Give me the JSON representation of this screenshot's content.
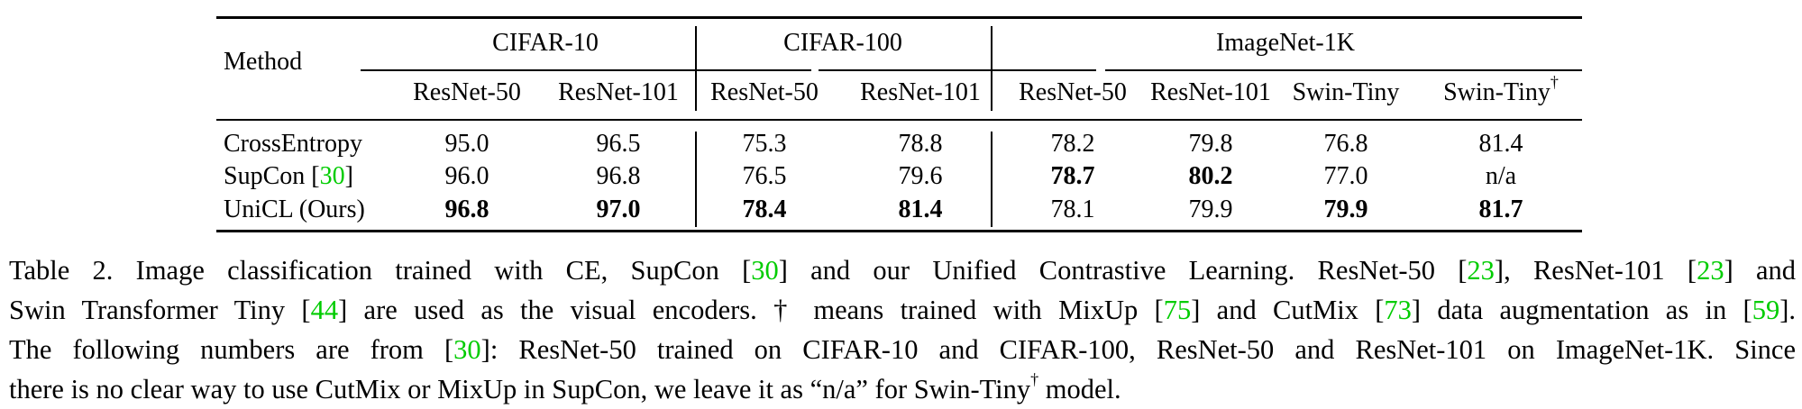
{
  "table": {
    "method_header": "Method",
    "groups": [
      {
        "label": "CIFAR-10"
      },
      {
        "label": "CIFAR-100"
      },
      {
        "label": "ImageNet-1K"
      }
    ],
    "columns": [
      "ResNet-50",
      "ResNet-101",
      "ResNet-50",
      "ResNet-101",
      "ResNet-50",
      "ResNet-101",
      "Swin-Tiny",
      "Swin-Tiny"
    ],
    "dagger": "†",
    "rows": [
      {
        "method": "CrossEntropy",
        "cite": "",
        "values": [
          "95.0",
          "96.5",
          "75.3",
          "78.8",
          "78.2",
          "79.8",
          "76.8",
          "81.4"
        ],
        "bold": [
          false,
          false,
          false,
          false,
          false,
          false,
          false,
          false
        ]
      },
      {
        "method": "SupCon [",
        "cite": "30",
        "close": "]",
        "values": [
          "96.0",
          "96.8",
          "76.5",
          "79.6",
          "78.7",
          "80.2",
          "77.0",
          "n/a"
        ],
        "bold": [
          false,
          false,
          false,
          false,
          true,
          true,
          false,
          false
        ]
      },
      {
        "method": "UniCL (Ours)",
        "cite": "",
        "values": [
          "96.8",
          "97.0",
          "78.4",
          "81.4",
          "78.1",
          "79.9",
          "79.9",
          "81.7"
        ],
        "bold": [
          true,
          true,
          true,
          true,
          false,
          false,
          true,
          true
        ]
      }
    ]
  },
  "caption": {
    "lines": [
      [
        {
          "t": "Table 2. Image classification trained with CE, SupCon ["
        },
        {
          "t": "30",
          "c": 1
        },
        {
          "t": "] and our Unified Contrastive Learning. ResNet-50 ["
        },
        {
          "t": "23",
          "c": 1
        },
        {
          "t": "], ResNet-101 ["
        },
        {
          "t": "23",
          "c": 1
        },
        {
          "t": "] and"
        }
      ],
      [
        {
          "t": "Swin Transformer Tiny ["
        },
        {
          "t": "44",
          "c": 1
        },
        {
          "t": "] are used as the visual encoders. † means trained with MixUp ["
        },
        {
          "t": "75",
          "c": 1
        },
        {
          "t": "] and CutMix ["
        },
        {
          "t": "73",
          "c": 1
        },
        {
          "t": "] data augmentation as in ["
        },
        {
          "t": "59",
          "c": 1
        },
        {
          "t": "]."
        }
      ],
      [
        {
          "t": "The following numbers are from ["
        },
        {
          "t": "30",
          "c": 1
        },
        {
          "t": "]: ResNet-50 trained on CIFAR-10 and CIFAR-100, ResNet-50 and ResNet-101 on ImageNet-1K. Since"
        }
      ],
      [
        {
          "t": "there is no clear way to use CutMix or MixUp in SupCon, we leave it as “n/a” for Swin-Tiny"
        },
        {
          "t": "†",
          "s": 1
        },
        {
          "t": " model."
        }
      ]
    ]
  }
}
